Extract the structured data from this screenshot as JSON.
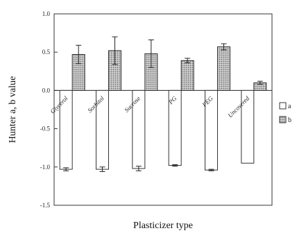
{
  "chart_data": {
    "type": "bar",
    "categories": [
      "Glycerol",
      "Sorbitol",
      "Sucrose",
      "PG",
      "PEG",
      "Uncovered"
    ],
    "series": [
      {
        "name": "a",
        "values": [
          -1.03,
          -1.03,
          -1.02,
          -0.98,
          -1.04,
          -0.95
        ],
        "errors": [
          0.02,
          0.03,
          0.03,
          0.01,
          0.01,
          0.0
        ],
        "fill": "#ffffff"
      },
      {
        "name": "b",
        "values": [
          0.47,
          0.52,
          0.48,
          0.39,
          0.57,
          0.1
        ],
        "errors": [
          0.12,
          0.18,
          0.18,
          0.03,
          0.04,
          0.02
        ],
        "fill": "#b8b8b8"
      }
    ],
    "ylim": [
      -1.5,
      1.0
    ],
    "yticks": [
      "1.0",
      "0.5",
      "0.0",
      "-0.5",
      "-1.0",
      "-1.5"
    ],
    "ytick_values": [
      1.0,
      0.5,
      0.0,
      -0.5,
      -1.0,
      -1.5
    ],
    "xlabel": "Plasticizer type",
    "ylabel": "Hunter a, b value",
    "legend": "right",
    "grid": false
  }
}
